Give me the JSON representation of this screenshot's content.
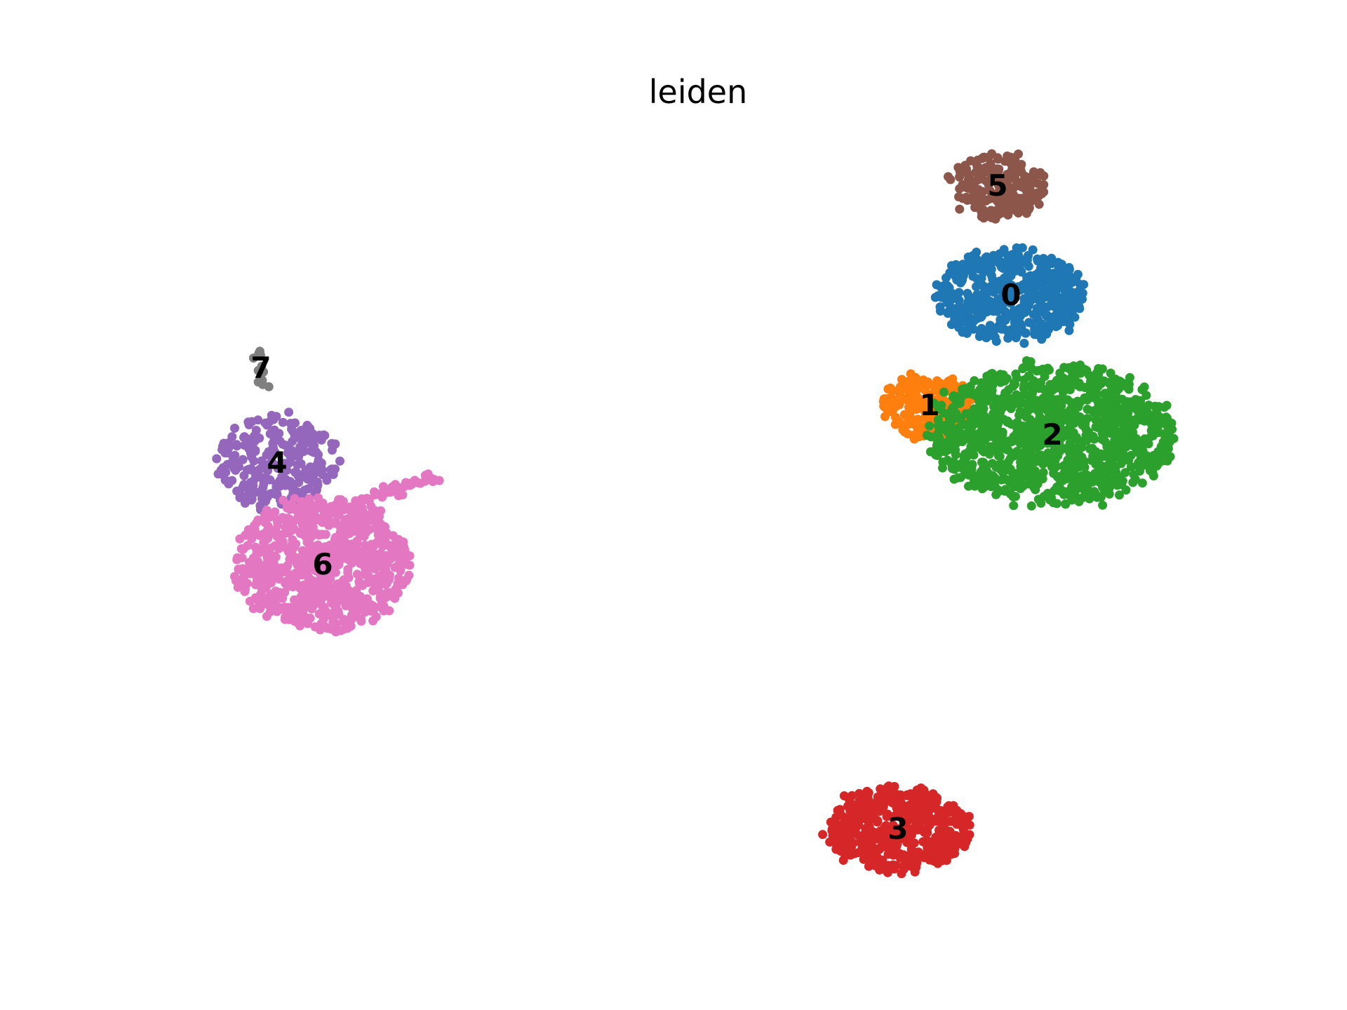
{
  "chart_data": {
    "type": "scatter",
    "title": "leiden",
    "xlabel": "",
    "ylabel": "",
    "grid": false,
    "axes_visible": false,
    "legend": "on data",
    "clusters": [
      {
        "label": "0",
        "color": "#1f77b4",
        "center": [
          1441,
          421
        ],
        "spread": [
          105,
          65
        ],
        "n": 480
      },
      {
        "label": "1",
        "color": "#ff7f0e",
        "center": [
          1325,
          578
        ],
        "spread": [
          65,
          48
        ],
        "n": 200
      },
      {
        "label": "2",
        "color": "#2ca02c",
        "center": [
          1500,
          620
        ],
        "spread": [
          175,
          100
        ],
        "n": 1100
      },
      {
        "label": "3",
        "color": "#d62728",
        "center": [
          1280,
          1182
        ],
        "spread": [
          100,
          58
        ],
        "n": 520
      },
      {
        "label": "4",
        "color": "#9467bd",
        "center": [
          395,
          660
        ],
        "spread": [
          88,
          68
        ],
        "n": 260
      },
      {
        "label": "5",
        "color": "#8c564b",
        "center": [
          1422,
          265
        ],
        "spread": [
          68,
          45
        ],
        "n": 220
      },
      {
        "label": "6",
        "color": "#e377c2",
        "center": [
          460,
          805
        ],
        "spread": [
          125,
          95
        ],
        "n": 780
      },
      {
        "label": "7",
        "color": "#7f7f7f",
        "center": [
          372,
          525
        ],
        "spread": [
          10,
          28
        ],
        "n": 14
      }
    ]
  }
}
